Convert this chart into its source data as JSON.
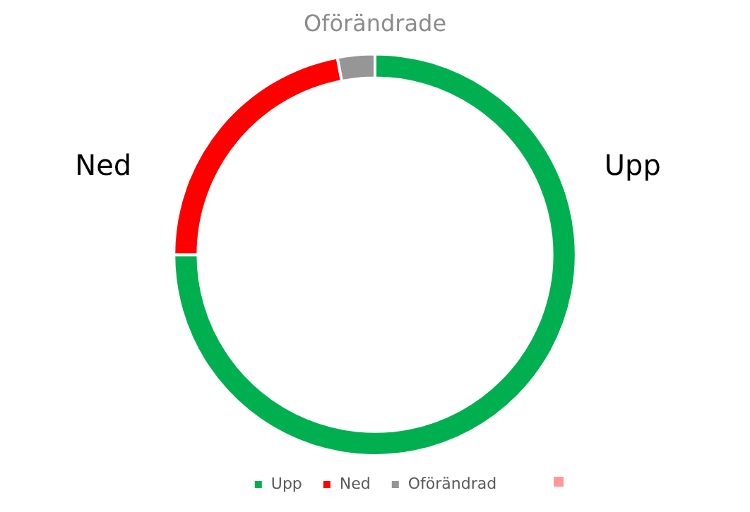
{
  "chart_data": {
    "type": "donut",
    "title": "Oförändrade",
    "categories": [
      "Upp",
      "Ned",
      "Oförändrad"
    ],
    "values": [
      75,
      22,
      3
    ],
    "colors": [
      "#00b050",
      "#ff0000",
      "#969696"
    ],
    "annotations": [
      "Ned",
      "Upp"
    ],
    "legend": "bottom"
  }
}
